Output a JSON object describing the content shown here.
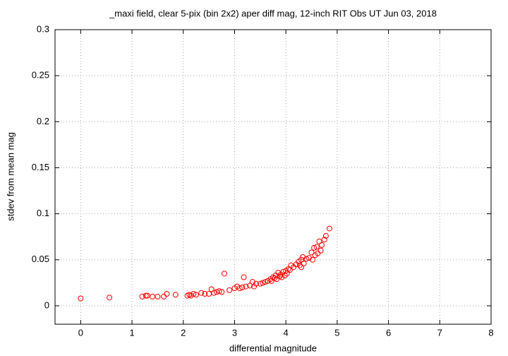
{
  "chart_data": {
    "type": "scatter",
    "title": "_maxi field, clear 5-pix (bin 2x2) aper diff mag,  12-inch RIT Obs UT Jun 03, 2018",
    "xlabel": "differential magnitude",
    "ylabel": "stdev from mean mag",
    "color": "#ff0000",
    "grid": true,
    "xlim": [
      -0.5,
      8
    ],
    "ylim": [
      -0.02,
      0.3
    ],
    "xticks": [
      0,
      1,
      2,
      3,
      4,
      5,
      6,
      7,
      8
    ],
    "yticks": [
      0,
      0.05,
      0.1,
      0.15,
      0.2,
      0.25,
      0.3
    ],
    "x": [
      0.0,
      0.56,
      1.2,
      1.27,
      1.3,
      1.4,
      1.5,
      1.62,
      1.68,
      1.85,
      2.08,
      2.12,
      2.15,
      2.2,
      2.25,
      2.35,
      2.42,
      2.5,
      2.55,
      2.6,
      2.65,
      2.7,
      2.75,
      2.8,
      2.9,
      3.0,
      3.05,
      3.1,
      3.15,
      3.18,
      3.22,
      3.3,
      3.35,
      3.38,
      3.42,
      3.5,
      3.55,
      3.6,
      3.65,
      3.7,
      3.72,
      3.75,
      3.78,
      3.8,
      3.82,
      3.85,
      3.88,
      3.9,
      3.92,
      3.95,
      3.98,
      4.0,
      4.02,
      4.05,
      4.08,
      4.1,
      4.15,
      4.2,
      4.25,
      4.27,
      4.3,
      4.3,
      4.33,
      4.35,
      4.4,
      4.45,
      4.5,
      4.52,
      4.55,
      4.57,
      4.6,
      4.62,
      4.65,
      4.68,
      4.7,
      4.75,
      4.78,
      4.85
    ],
    "values": [
      0.008,
      0.009,
      0.01,
      0.011,
      0.011,
      0.01,
      0.01,
      0.01,
      0.013,
      0.012,
      0.011,
      0.012,
      0.011,
      0.013,
      0.012,
      0.014,
      0.013,
      0.013,
      0.018,
      0.014,
      0.015,
      0.016,
      0.015,
      0.035,
      0.017,
      0.019,
      0.021,
      0.019,
      0.02,
      0.031,
      0.021,
      0.022,
      0.026,
      0.021,
      0.024,
      0.024,
      0.025,
      0.026,
      0.027,
      0.029,
      0.027,
      0.031,
      0.03,
      0.033,
      0.029,
      0.036,
      0.032,
      0.034,
      0.031,
      0.037,
      0.033,
      0.038,
      0.035,
      0.04,
      0.039,
      0.044,
      0.042,
      0.045,
      0.048,
      0.044,
      0.05,
      0.042,
      0.053,
      0.046,
      0.051,
      0.052,
      0.058,
      0.05,
      0.063,
      0.055,
      0.064,
      0.057,
      0.07,
      0.06,
      0.066,
      0.072,
      0.076,
      0.084
    ]
  }
}
